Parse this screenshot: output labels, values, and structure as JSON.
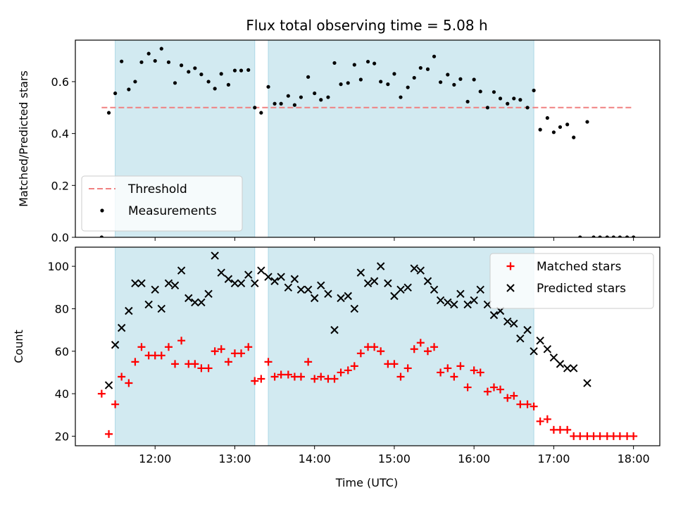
{
  "chart_data": {
    "title": "Flux total observing time = 5.08 h",
    "xlabel": "Time (UTC)",
    "x_unit": "hours UTC",
    "xlim": [
      11.0,
      18.33
    ],
    "x_ticks": [
      12,
      13,
      14,
      15,
      16,
      17,
      18
    ],
    "x_tick_labels": [
      "12:00",
      "13:00",
      "14:00",
      "15:00",
      "16:00",
      "17:00",
      "18:00"
    ],
    "highlight_intervals": [
      [
        11.5,
        13.25
      ],
      [
        13.42,
        16.75
      ]
    ],
    "highlight_color": "#add8e6",
    "panels": [
      {
        "type": "scatter",
        "ylabel": "Matched/Predicted stars",
        "ylim": [
          0.0,
          0.76
        ],
        "y_ticks": [
          0.0,
          0.2,
          0.4,
          0.6
        ],
        "y_tick_labels": [
          "0.0",
          "0.2",
          "0.4",
          "0.6"
        ],
        "legend": "lower-left",
        "threshold": {
          "name": "Threshold",
          "value": 0.5,
          "x_range": [
            11.33,
            18.0
          ],
          "color": "#f08080"
        },
        "series": [
          {
            "name": "Measurements",
            "marker": "dot",
            "color": "#000000",
            "points": [
              [
                11.33,
                0.0
              ],
              [
                11.42,
                0.48
              ],
              [
                11.5,
                0.555
              ],
              [
                11.58,
                0.678
              ],
              [
                11.67,
                0.57
              ],
              [
                11.75,
                0.6
              ],
              [
                11.83,
                0.675
              ],
              [
                11.92,
                0.708
              ],
              [
                12.0,
                0.68
              ],
              [
                12.08,
                0.727
              ],
              [
                12.17,
                0.675
              ],
              [
                12.25,
                0.595
              ],
              [
                12.33,
                0.663
              ],
              [
                12.42,
                0.638
              ],
              [
                12.5,
                0.652
              ],
              [
                12.58,
                0.628
              ],
              [
                12.67,
                0.6
              ],
              [
                12.75,
                0.573
              ],
              [
                12.83,
                0.63
              ],
              [
                12.92,
                0.588
              ],
              [
                13.0,
                0.643
              ],
              [
                13.08,
                0.643
              ],
              [
                13.17,
                0.645
              ],
              [
                13.25,
                0.5
              ],
              [
                13.33,
                0.48
              ],
              [
                13.42,
                0.58
              ],
              [
                13.5,
                0.515
              ],
              [
                13.58,
                0.515
              ],
              [
                13.67,
                0.545
              ],
              [
                13.75,
                0.51
              ],
              [
                13.83,
                0.54
              ],
              [
                13.92,
                0.618
              ],
              [
                14.0,
                0.555
              ],
              [
                14.08,
                0.53
              ],
              [
                14.17,
                0.54
              ],
              [
                14.25,
                0.672
              ],
              [
                14.33,
                0.59
              ],
              [
                14.42,
                0.595
              ],
              [
                14.5,
                0.665
              ],
              [
                14.58,
                0.608
              ],
              [
                14.67,
                0.677
              ],
              [
                14.75,
                0.67
              ],
              [
                14.83,
                0.6
              ],
              [
                14.92,
                0.59
              ],
              [
                15.0,
                0.63
              ],
              [
                15.08,
                0.54
              ],
              [
                15.17,
                0.578
              ],
              [
                15.25,
                0.615
              ],
              [
                15.33,
                0.653
              ],
              [
                15.42,
                0.648
              ],
              [
                15.5,
                0.697
              ],
              [
                15.58,
                0.598
              ],
              [
                15.67,
                0.627
              ],
              [
                15.75,
                0.588
              ],
              [
                15.83,
                0.61
              ],
              [
                15.92,
                0.523
              ],
              [
                16.0,
                0.608
              ],
              [
                16.08,
                0.562
              ],
              [
                16.17,
                0.5
              ],
              [
                16.25,
                0.56
              ],
              [
                16.33,
                0.535
              ],
              [
                16.42,
                0.515
              ],
              [
                16.5,
                0.535
              ],
              [
                16.58,
                0.53
              ],
              [
                16.67,
                0.5
              ],
              [
                16.75,
                0.566
              ],
              [
                16.83,
                0.415
              ],
              [
                16.92,
                0.46
              ],
              [
                17.0,
                0.405
              ],
              [
                17.08,
                0.425
              ],
              [
                17.17,
                0.435
              ],
              [
                17.25,
                0.385
              ],
              [
                17.33,
                0.0
              ],
              [
                17.42,
                0.445
              ],
              [
                17.5,
                0.0
              ],
              [
                17.58,
                0.0
              ],
              [
                17.67,
                0.0
              ],
              [
                17.75,
                0.0
              ],
              [
                17.83,
                0.0
              ],
              [
                17.92,
                0.0
              ],
              [
                18.0,
                0.0
              ]
            ]
          }
        ]
      },
      {
        "type": "scatter",
        "ylabel": "Count",
        "ylim": [
          15.5,
          109
        ],
        "y_ticks": [
          20,
          40,
          60,
          80,
          100
        ],
        "y_tick_labels": [
          "20",
          "40",
          "60",
          "80",
          "100"
        ],
        "legend": "top-right",
        "series": [
          {
            "name": "Matched stars",
            "marker": "plus",
            "color": "#ff0000",
            "points": [
              [
                11.33,
                40
              ],
              [
                11.42,
                21
              ],
              [
                11.5,
                35
              ],
              [
                11.58,
                48
              ],
              [
                11.67,
                45
              ],
              [
                11.75,
                55
              ],
              [
                11.83,
                62
              ],
              [
                11.92,
                58
              ],
              [
                12.0,
                58
              ],
              [
                12.08,
                58
              ],
              [
                12.17,
                62
              ],
              [
                12.25,
                54
              ],
              [
                12.33,
                65
              ],
              [
                12.42,
                54
              ],
              [
                12.5,
                54
              ],
              [
                12.58,
                52
              ],
              [
                12.67,
                52
              ],
              [
                12.75,
                60
              ],
              [
                12.83,
                61
              ],
              [
                12.92,
                55
              ],
              [
                13.0,
                59
              ],
              [
                13.08,
                59
              ],
              [
                13.17,
                62
              ],
              [
                13.25,
                46
              ],
              [
                13.33,
                47
              ],
              [
                13.42,
                55
              ],
              [
                13.5,
                48
              ],
              [
                13.58,
                49
              ],
              [
                13.67,
                49
              ],
              [
                13.75,
                48
              ],
              [
                13.83,
                48
              ],
              [
                13.92,
                55
              ],
              [
                14.0,
                47
              ],
              [
                14.08,
                48
              ],
              [
                14.17,
                47
              ],
              [
                14.25,
                47
              ],
              [
                14.33,
                50
              ],
              [
                14.42,
                51
              ],
              [
                14.5,
                53
              ],
              [
                14.58,
                59
              ],
              [
                14.67,
                62
              ],
              [
                14.75,
                62
              ],
              [
                14.83,
                60
              ],
              [
                14.92,
                54
              ],
              [
                15.0,
                54
              ],
              [
                15.08,
                48
              ],
              [
                15.17,
                52
              ],
              [
                15.25,
                61
              ],
              [
                15.33,
                64
              ],
              [
                15.42,
                60
              ],
              [
                15.5,
                62
              ],
              [
                15.58,
                50
              ],
              [
                15.67,
                52
              ],
              [
                15.75,
                48
              ],
              [
                15.83,
                53
              ],
              [
                15.92,
                43
              ],
              [
                16.0,
                51
              ],
              [
                16.08,
                50
              ],
              [
                16.17,
                41
              ],
              [
                16.25,
                43
              ],
              [
                16.33,
                42
              ],
              [
                16.42,
                38
              ],
              [
                16.5,
                39
              ],
              [
                16.58,
                35
              ],
              [
                16.67,
                35
              ],
              [
                16.75,
                34
              ],
              [
                16.83,
                27
              ],
              [
                16.92,
                28
              ],
              [
                17.0,
                23
              ],
              [
                17.08,
                23
              ],
              [
                17.17,
                23
              ],
              [
                17.25,
                20
              ],
              [
                17.33,
                20
              ],
              [
                17.42,
                20
              ],
              [
                17.5,
                20
              ],
              [
                17.58,
                20
              ],
              [
                17.67,
                20
              ],
              [
                17.75,
                20
              ],
              [
                17.83,
                20
              ],
              [
                17.92,
                20
              ],
              [
                18.0,
                20
              ]
            ]
          },
          {
            "name": "Predicted stars",
            "marker": "x",
            "color": "#000000",
            "points": [
              [
                11.42,
                44
              ],
              [
                11.5,
                63
              ],
              [
                11.58,
                71
              ],
              [
                11.67,
                79
              ],
              [
                11.75,
                92
              ],
              [
                11.83,
                92
              ],
              [
                11.92,
                82
              ],
              [
                12.0,
                89
              ],
              [
                12.08,
                80
              ],
              [
                12.17,
                92
              ],
              [
                12.25,
                91
              ],
              [
                12.33,
                98
              ],
              [
                12.42,
                85
              ],
              [
                12.5,
                83
              ],
              [
                12.58,
                83
              ],
              [
                12.67,
                87
              ],
              [
                12.75,
                105
              ],
              [
                12.83,
                97
              ],
              [
                12.92,
                94
              ],
              [
                13.0,
                92
              ],
              [
                13.08,
                92
              ],
              [
                13.17,
                96
              ],
              [
                13.25,
                92
              ],
              [
                13.33,
                98
              ],
              [
                13.42,
                95
              ],
              [
                13.5,
                93
              ],
              [
                13.58,
                95
              ],
              [
                13.67,
                90
              ],
              [
                13.75,
                94
              ],
              [
                13.83,
                89
              ],
              [
                13.92,
                89
              ],
              [
                14.0,
                85
              ],
              [
                14.08,
                91
              ],
              [
                14.17,
                87
              ],
              [
                14.25,
                70
              ],
              [
                14.33,
                85
              ],
              [
                14.42,
                86
              ],
              [
                14.5,
                80
              ],
              [
                14.58,
                97
              ],
              [
                14.67,
                92
              ],
              [
                14.75,
                93
              ],
              [
                14.83,
                100
              ],
              [
                14.92,
                92
              ],
              [
                15.0,
                86
              ],
              [
                15.08,
                89
              ],
              [
                15.17,
                90
              ],
              [
                15.25,
                99
              ],
              [
                15.33,
                98
              ],
              [
                15.42,
                93
              ],
              [
                15.5,
                89
              ],
              [
                15.58,
                84
              ],
              [
                15.67,
                83
              ],
              [
                15.75,
                82
              ],
              [
                15.83,
                87
              ],
              [
                15.92,
                82
              ],
              [
                16.0,
                84
              ],
              [
                16.08,
                89
              ],
              [
                16.17,
                82
              ],
              [
                16.25,
                77
              ],
              [
                16.33,
                79
              ],
              [
                16.42,
                74
              ],
              [
                16.5,
                73
              ],
              [
                16.58,
                66
              ],
              [
                16.67,
                70
              ],
              [
                16.75,
                60
              ],
              [
                16.83,
                65
              ],
              [
                16.92,
                61
              ],
              [
                17.0,
                57
              ],
              [
                17.08,
                54
              ],
              [
                17.17,
                52
              ],
              [
                17.25,
                52
              ],
              [
                17.42,
                45
              ]
            ]
          }
        ]
      }
    ]
  }
}
